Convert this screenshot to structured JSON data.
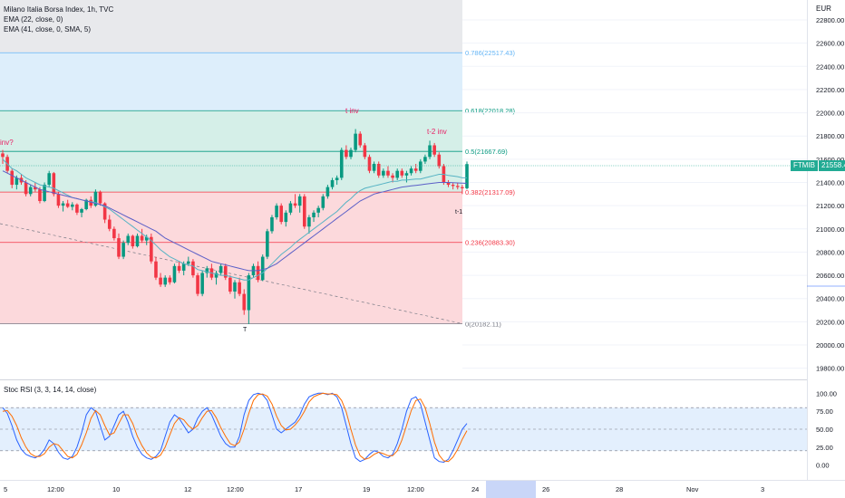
{
  "legend": {
    "symbol": "Milano Italia Borsa Index, 1h, TVC",
    "ema1": "EMA (22, close, 0)",
    "ema2": "EMA (41, close, 0, SMA, 5)"
  },
  "currency": "EUR",
  "price_badge": {
    "ticker": "FTMIB",
    "price": "21558.49"
  },
  "stoch_label": "Stoc RSI (3, 3, 14, 14, close)",
  "colors": {
    "up": "#089981",
    "down": "#f23645",
    "ema22": "#56b3c4",
    "ema41": "#5b5fc7",
    "stoch_k": "#2962ff",
    "stoch_d": "#ff6d00",
    "fib_top_fill": "#ddeefb",
    "fib_mid_fill": "#d5efe8",
    "fib_low_fill": "#fcd9dc",
    "annotation": "#e91e63"
  },
  "chart_data": [
    {
      "type": "candlestick",
      "title": "Milano Italia Borsa Index, 1h, TVC",
      "ylabel": "EUR",
      "ylim": [
        19700,
        23000
      ],
      "y_ticks": [
        19800,
        20000,
        20200,
        20400,
        20600,
        20800,
        21000,
        21200,
        21400,
        21600,
        21800,
        22000,
        22200,
        22400,
        22600,
        22800
      ],
      "y_tick_labels": [
        "19800.00",
        "20000.00",
        "20200.00",
        "20400.00",
        "20600.00",
        "20800.00",
        "21000.00",
        "21200.00",
        "21400.00",
        "21600.00",
        "21800.00",
        "22000.00",
        "22200.00",
        "22400.00",
        "22600.00",
        "22800.00"
      ],
      "x_tick_labels": [
        "5",
        "12:00",
        "10",
        "12",
        "12:00",
        "17",
        "19",
        "12:00",
        "24",
        "26",
        "28",
        "Nov",
        "3"
      ],
      "last_price": 21558.49,
      "fib_levels": [
        {
          "label": "0.786(22517.43)",
          "value": 22517.43
        },
        {
          "label": "0.618(22018.28)",
          "value": 22018.28
        },
        {
          "label": "0.5(21667.69)",
          "value": 21667.69
        },
        {
          "label": "0.382(21317.09)",
          "value": 21317.09
        },
        {
          "label": "0.236(20883.30)",
          "value": 20883.3
        },
        {
          "label": "0(20182.11)",
          "value": 20182.11
        }
      ],
      "annotations": [
        "inv?",
        "t inv",
        "t-2 inv",
        "t-1",
        "T"
      ],
      "candles": [
        [
          21650,
          21680,
          21560,
          21620
        ],
        [
          21620,
          21640,
          21480,
          21500
        ],
        [
          21500,
          21520,
          21350,
          21380
        ],
        [
          21380,
          21460,
          21340,
          21440
        ],
        [
          21440,
          21470,
          21380,
          21400
        ],
        [
          21400,
          21420,
          21280,
          21300
        ],
        [
          21300,
          21380,
          21280,
          21360
        ],
        [
          21360,
          21400,
          21320,
          21340
        ],
        [
          21340,
          21360,
          21220,
          21240
        ],
        [
          21240,
          21400,
          21230,
          21380
        ],
        [
          21380,
          21500,
          21360,
          21480
        ],
        [
          21480,
          21490,
          21280,
          21300
        ],
        [
          21300,
          21320,
          21180,
          21200
        ],
        [
          21200,
          21240,
          21150,
          21220
        ],
        [
          21220,
          21250,
          21180,
          21190
        ],
        [
          21190,
          21230,
          21160,
          21210
        ],
        [
          21210,
          21220,
          21120,
          21140
        ],
        [
          21140,
          21180,
          21100,
          21170
        ],
        [
          21170,
          21260,
          21160,
          21250
        ],
        [
          21250,
          21280,
          21180,
          21200
        ],
        [
          21200,
          21340,
          21190,
          21320
        ],
        [
          21320,
          21330,
          21200,
          21220
        ],
        [
          21220,
          21230,
          21050,
          21080
        ],
        [
          21080,
          21120,
          20980,
          21000
        ],
        [
          21000,
          21020,
          20900,
          20920
        ],
        [
          20920,
          20960,
          20740,
          20760
        ],
        [
          20760,
          20900,
          20740,
          20880
        ],
        [
          20880,
          20960,
          20860,
          20940
        ],
        [
          20940,
          20950,
          20830,
          20850
        ],
        [
          20850,
          20960,
          20840,
          20940
        ],
        [
          20940,
          21000,
          20880,
          20900
        ],
        [
          20900,
          20950,
          20860,
          20930
        ],
        [
          20930,
          20960,
          20700,
          20720
        ],
        [
          20720,
          20760,
          20560,
          20580
        ],
        [
          20580,
          20620,
          20500,
          20520
        ],
        [
          20520,
          20600,
          20500,
          20580
        ],
        [
          20580,
          20600,
          20520,
          20540
        ],
        [
          20540,
          20700,
          20530,
          20680
        ],
        [
          20680,
          20720,
          20620,
          20640
        ],
        [
          20640,
          20720,
          20600,
          20700
        ],
        [
          20700,
          20760,
          20680,
          20720
        ],
        [
          20720,
          20740,
          20580,
          20600
        ],
        [
          20600,
          20620,
          20420,
          20440
        ],
        [
          20440,
          20640,
          20420,
          20620
        ],
        [
          20620,
          20680,
          20580,
          20660
        ],
        [
          20660,
          20700,
          20560,
          20580
        ],
        [
          20580,
          20640,
          20520,
          20620
        ],
        [
          20620,
          20700,
          20600,
          20680
        ],
        [
          20680,
          20700,
          20560,
          20580
        ],
        [
          20580,
          20600,
          20440,
          20460
        ],
        [
          20460,
          20560,
          20400,
          20540
        ],
        [
          20540,
          20580,
          20420,
          20440
        ],
        [
          20440,
          20480,
          20260,
          20300
        ],
        [
          20300,
          20620,
          20180,
          20600
        ],
        [
          20600,
          20700,
          20580,
          20680
        ],
        [
          20680,
          20720,
          20540,
          20560
        ],
        [
          20560,
          20780,
          20550,
          20760
        ],
        [
          20760,
          21000,
          20740,
          20980
        ],
        [
          20980,
          21120,
          20960,
          21100
        ],
        [
          21100,
          21220,
          21080,
          21200
        ],
        [
          21200,
          21220,
          21040,
          21060
        ],
        [
          21060,
          21160,
          21020,
          21140
        ],
        [
          21140,
          21240,
          21120,
          21220
        ],
        [
          21220,
          21300,
          21180,
          21200
        ],
        [
          21200,
          21300,
          21140,
          21280
        ],
        [
          21280,
          21300,
          21000,
          21020
        ],
        [
          21020,
          21120,
          20960,
          21100
        ],
        [
          21100,
          21160,
          21060,
          21140
        ],
        [
          21140,
          21200,
          21100,
          21180
        ],
        [
          21180,
          21300,
          21160,
          21280
        ],
        [
          21280,
          21380,
          21260,
          21360
        ],
        [
          21360,
          21440,
          21340,
          21420
        ],
        [
          21420,
          21460,
          21380,
          21440
        ],
        [
          21440,
          21700,
          21420,
          21680
        ],
        [
          21680,
          21720,
          21600,
          21620
        ],
        [
          21620,
          21700,
          21600,
          21680
        ],
        [
          21680,
          21860,
          21660,
          21820
        ],
        [
          21820,
          21840,
          21700,
          21720
        ],
        [
          21720,
          21740,
          21600,
          21620
        ],
        [
          21620,
          21640,
          21480,
          21500
        ],
        [
          21500,
          21580,
          21480,
          21560
        ],
        [
          21560,
          21580,
          21440,
          21460
        ],
        [
          21460,
          21520,
          21440,
          21500
        ],
        [
          21500,
          21540,
          21440,
          21460
        ],
        [
          21460,
          21480,
          21400,
          21440
        ],
        [
          21440,
          21520,
          21420,
          21500
        ],
        [
          21500,
          21520,
          21440,
          21460
        ],
        [
          21460,
          21500,
          21400,
          21480
        ],
        [
          21480,
          21540,
          21460,
          21520
        ],
        [
          21520,
          21560,
          21480,
          21500
        ],
        [
          21500,
          21600,
          21480,
          21580
        ],
        [
          21580,
          21640,
          21560,
          21620
        ],
        [
          21620,
          21760,
          21600,
          21720
        ],
        [
          21720,
          21740,
          21620,
          21640
        ],
        [
          21640,
          21660,
          21520,
          21540
        ],
        [
          21540,
          21560,
          21380,
          21400
        ],
        [
          21400,
          21420,
          21360,
          21380
        ],
        [
          21380,
          21400,
          21340,
          21370
        ],
        [
          21370,
          21400,
          21340,
          21360
        ],
        [
          21360,
          21380,
          21300,
          21350
        ],
        [
          21350,
          21580,
          21340,
          21558
        ]
      ],
      "ema22": [
        21600,
        21560,
        21520,
        21500,
        21470,
        21440,
        21420,
        21400,
        21380,
        21370,
        21360,
        21350,
        21330,
        21310,
        21290,
        21270,
        21260,
        21250,
        21240,
        21235,
        21225,
        21210,
        21190,
        21170,
        21140,
        21110,
        21080,
        21050,
        21020,
        20990,
        20960,
        20930,
        20900,
        20860,
        20820,
        20790,
        20760,
        20740,
        20720,
        20700,
        20690,
        20680,
        20650,
        20640,
        20630,
        20620,
        20610,
        20600,
        20600,
        20590,
        20580,
        20570,
        20560,
        20560,
        20580,
        20600,
        20620,
        20660,
        20700,
        20740,
        20780,
        20810,
        20840,
        20880,
        20910,
        20940,
        20970,
        21000,
        21030,
        21060,
        21090,
        21120,
        21150,
        21190,
        21230,
        21260,
        21300,
        21330,
        21350,
        21360,
        21370,
        21380,
        21390,
        21400,
        21410,
        21410,
        21420,
        21420,
        21425,
        21430,
        21430,
        21440,
        21450,
        21460,
        21470,
        21470,
        21460,
        21455,
        21450,
        21440,
        21440
      ],
      "ema41": [
        21500,
        21480,
        21460,
        21440,
        21420,
        21400,
        21380,
        21360,
        21340,
        21330,
        21320,
        21310,
        21300,
        21290,
        21280,
        21270,
        21260,
        21250,
        21240,
        21230,
        21220,
        21210,
        21200,
        21180,
        21160,
        21140,
        21120,
        21100,
        21080,
        21060,
        21040,
        21020,
        21000,
        20980,
        20950,
        20920,
        20900,
        20880,
        20860,
        20840,
        20820,
        20800,
        20780,
        20760,
        20740,
        20720,
        20710,
        20700,
        20690,
        20680,
        20670,
        20660,
        20650,
        20640,
        20640,
        20640,
        20650,
        20660,
        20680,
        20700,
        20730,
        20760,
        20790,
        20820,
        20850,
        20880,
        20910,
        20940,
        20970,
        21000,
        21030,
        21060,
        21090,
        21120,
        21150,
        21180,
        21210,
        21240,
        21260,
        21280,
        21300,
        21310,
        21320,
        21330,
        21340,
        21350,
        21360,
        21365,
        21370,
        21375,
        21380,
        21385,
        21390,
        21395,
        21400,
        21400,
        21400,
        21398,
        21396,
        21394,
        21392
      ]
    },
    {
      "type": "line",
      "title": "Stoc RSI (3, 3, 14, 14, close)",
      "ylim": [
        -8,
        108
      ],
      "y_ticks": [
        0,
        25,
        50,
        75,
        100
      ],
      "y_tick_labels": [
        "0.00",
        "25.00",
        "50.00",
        "75.00",
        "100.00"
      ],
      "bands": [
        20,
        50,
        80
      ],
      "series": [
        {
          "values": [
            80,
            72,
            55,
            35,
            22,
            15,
            12,
            10,
            14,
            22,
            35,
            30,
            18,
            10,
            8,
            12,
            25,
            45,
            70,
            80,
            75,
            55,
            35,
            40,
            55,
            70,
            75,
            60,
            40,
            25,
            15,
            10,
            8,
            12,
            20,
            40,
            60,
            70,
            65,
            55,
            45,
            50,
            65,
            75,
            80,
            70,
            55,
            40,
            30,
            25,
            25,
            40,
            70,
            90,
            98,
            100,
            98,
            90,
            70,
            50,
            45,
            50,
            55,
            60,
            70,
            85,
            95,
            98,
            100,
            100,
            98,
            100,
            95,
            80,
            55,
            30,
            10,
            5,
            8,
            15,
            20,
            18,
            12,
            10,
            15,
            30,
            50,
            75,
            92,
            95,
            85,
            60,
            35,
            10,
            5,
            4,
            8,
            20,
            35,
            50,
            58
          ]
        },
        {
          "values": [
            75,
            76,
            68,
            55,
            38,
            25,
            16,
            12,
            12,
            16,
            25,
            30,
            28,
            20,
            12,
            10,
            15,
            28,
            45,
            65,
            76,
            70,
            55,
            42,
            45,
            58,
            70,
            70,
            58,
            40,
            27,
            17,
            11,
            10,
            14,
            25,
            42,
            58,
            66,
            63,
            55,
            50,
            55,
            66,
            75,
            76,
            66,
            52,
            40,
            30,
            27,
            32,
            50,
            72,
            90,
            98,
            99,
            96,
            85,
            68,
            55,
            49,
            50,
            56,
            64,
            75,
            88,
            95,
            98,
            100,
            99,
            99,
            98,
            90,
            74,
            50,
            28,
            13,
            8,
            10,
            15,
            18,
            16,
            13,
            13,
            20,
            35,
            55,
            76,
            90,
            92,
            80,
            58,
            32,
            14,
            6,
            5,
            11,
            22,
            36,
            48
          ]
        }
      ]
    }
  ]
}
